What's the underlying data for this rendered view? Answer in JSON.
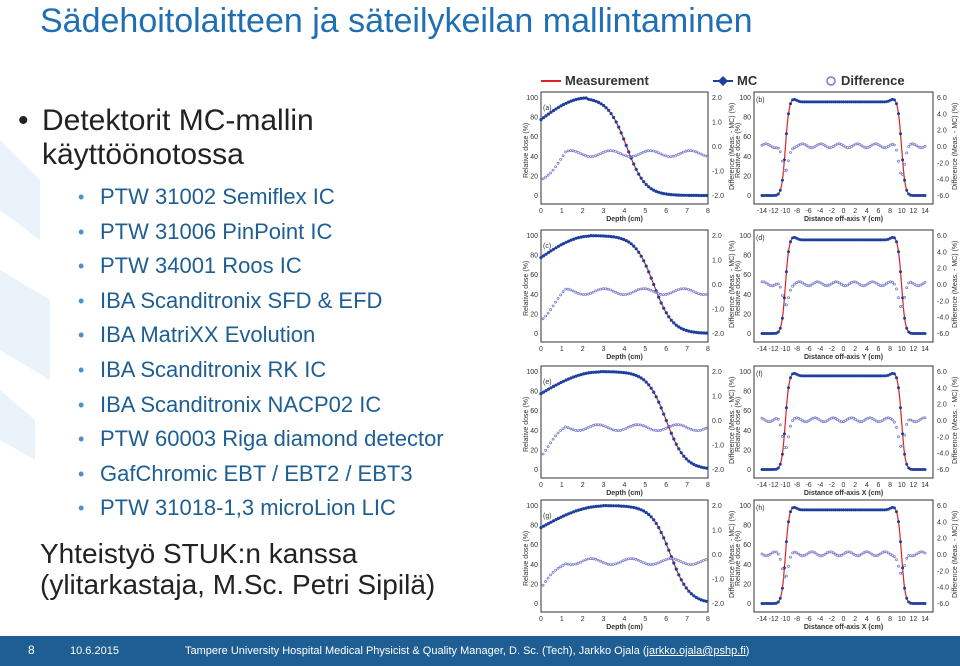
{
  "slide": {
    "title": "Sädehoitolaitteen ja säteilykeilan mallintaminen",
    "main_bullet": "Detektorit MC-mallin käyttöönotossa",
    "detectors": [
      "PTW 31002 Semiflex IC",
      "PTW 31006 PinPoint IC",
      "PTW 34001 Roos IC",
      "IBA Scanditronix SFD & EFD",
      "IBA MatriXX Evolution",
      "IBA Scanditronix RK IC",
      "IBA Scanditronix NACP02 IC",
      "PTW 60003 Riga diamond detector",
      "GafChromic EBT / EBT2 / EBT3",
      "PTW 31018-1,3 microLion LIC"
    ],
    "cooperation_line1": "Yhteistyö STUK:n kanssa",
    "cooperation_line2": "(ylitarkastaja, M.Sc. Petri Sipilä)"
  },
  "figure": {
    "legend": {
      "measurement": "Measurement",
      "mc": "MC",
      "difference": "Difference"
    },
    "panels_left": [
      "(a)",
      "(c)",
      "(e)",
      "(g)"
    ],
    "panels_right": [
      "(b)",
      "(d)",
      "(f)",
      "(h)"
    ],
    "depth_label": "Depth (cm)",
    "offaxis_y_label": "Distance off-axis Y (cm)",
    "offaxis_x_label": "Distance off-axis X (cm)",
    "ylabel_left": "Relative dose (%)",
    "ylabel_right": "Difference (Meas. - MC) (%)",
    "depth_ticks": [
      "0",
      "1",
      "2",
      "3",
      "4",
      "5",
      "6",
      "7",
      "8"
    ],
    "offaxis_ticks": [
      "-14",
      "-12",
      "-10",
      "-8",
      "-6",
      "-4",
      "-2",
      "0",
      "2",
      "4",
      "6",
      "8",
      "10",
      "12",
      "14"
    ],
    "dose_ticks": [
      "0",
      "20",
      "40",
      "60",
      "80",
      "100"
    ],
    "diff_ticks_left": [
      "-2.0",
      "-1.0",
      "0.0",
      "1.0",
      "2.0"
    ],
    "diff_ticks_right": [
      "-6.0",
      "-4.0",
      "-2.0",
      "0.0",
      "2.0",
      "4.0",
      "6.0"
    ],
    "colors": {
      "mc": "#1f3f9e",
      "measurement": "#dd2222",
      "difference": "#7a7ac8"
    }
  },
  "footer": {
    "page": "8",
    "date": "10.6.2015",
    "text_prefix": "Tampere University Hospital   Medical Physicist  & Quality Manager, D. Sc. (Tech), Jarkko Ojala (",
    "email": "jarkko.ojala@pshp.fi",
    "text_suffix": ")"
  }
}
